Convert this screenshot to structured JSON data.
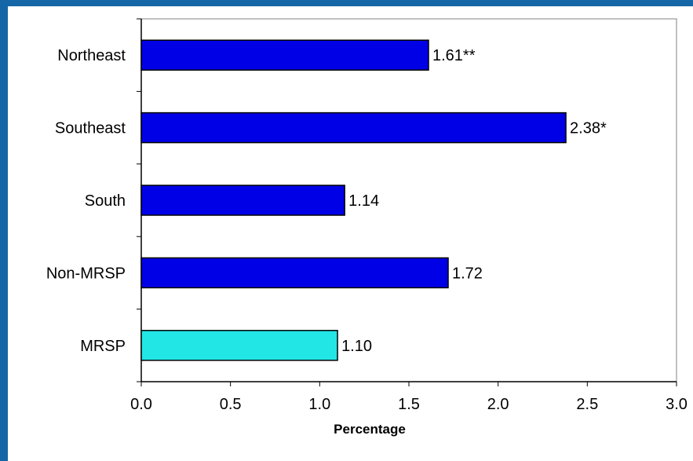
{
  "chart_data": {
    "type": "bar",
    "orientation": "horizontal",
    "categories": [
      "Northeast",
      "Southeast",
      "South",
      "Non-MRSP",
      "MRSP"
    ],
    "values": [
      1.61,
      2.38,
      1.14,
      1.72,
      1.1
    ],
    "value_labels": [
      "1.61**",
      "2.38*",
      "1.14",
      "1.72",
      "1.10"
    ],
    "bar_colors": [
      "#0000e6",
      "#0000e6",
      "#0000e6",
      "#0000e6",
      "#22e6e6"
    ],
    "xlabel": "Percentage",
    "ylabel": "",
    "xlim": [
      0,
      3.0
    ],
    "x_ticks": [
      "0.0",
      "0.5",
      "1.0",
      "1.5",
      "2.0",
      "2.5",
      "3.0"
    ],
    "grid": false,
    "legend": "none"
  },
  "colors": {
    "frame": "#1566a6",
    "plot_background": "#ffffff",
    "axis": "#808080"
  }
}
